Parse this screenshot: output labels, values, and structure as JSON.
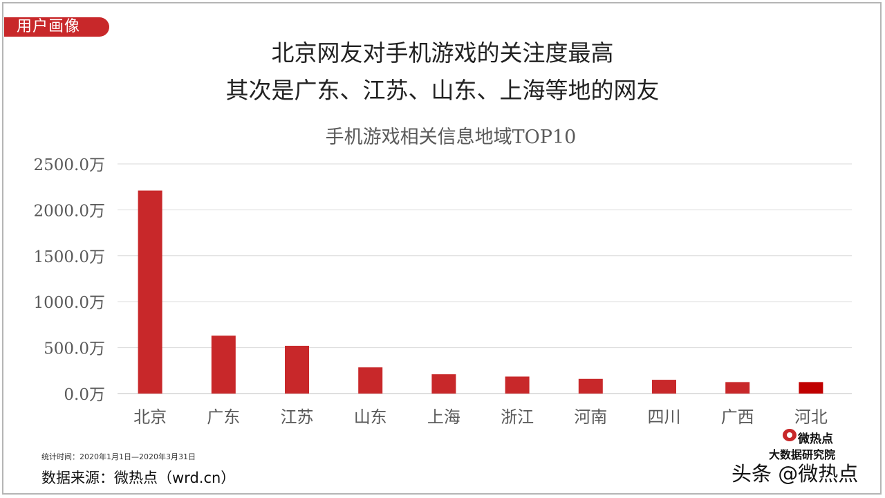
{
  "tag": "用户画像",
  "headline": {
    "line1": "北京网友对手机游戏的关注度最高",
    "line2": "其次是广东、江苏、山东、上海等地的网友"
  },
  "chart_data": {
    "type": "bar",
    "title": "手机游戏相关信息地域TOP10",
    "categories": [
      "北京",
      "广东",
      "江苏",
      "山东",
      "上海",
      "浙江",
      "河南",
      "四川",
      "广西",
      "河北"
    ],
    "values": [
      2210,
      630,
      520,
      285,
      210,
      185,
      160,
      150,
      125,
      125
    ],
    "ylim": [
      0,
      2500
    ],
    "yticks": [
      "0.0万",
      "500.0万",
      "1000.0万",
      "1500.0万",
      "2000.0万",
      "2500.0万"
    ],
    "tick_values": [
      0,
      500,
      1000,
      1500,
      2000,
      2500
    ],
    "grid": true,
    "bar_color": "#c8282a",
    "last_bar_color": "#c00000"
  },
  "footer": {
    "period": "统计时间：2020年1月1日—2020年3月31日",
    "source": "数据来源：微热点（wrd.cn）"
  },
  "logo": {
    "name": "微热点",
    "sub": "大数据研究院"
  },
  "watermark": "头条 @微热点",
  "colors": {
    "accent": "#c8282a",
    "grid": "#d9d9d9",
    "text": "#595959"
  }
}
